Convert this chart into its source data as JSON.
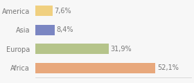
{
  "categories": [
    "Africa",
    "Europa",
    "Asia",
    "America"
  ],
  "values": [
    52.1,
    31.9,
    8.4,
    7.6
  ],
  "bar_colors": [
    "#e8a87c",
    "#b5c48a",
    "#7b86c2",
    "#f0d080"
  ],
  "labels": [
    "52,1%",
    "31,9%",
    "8,4%",
    "7,6%"
  ],
  "background_color": "#f7f7f7",
  "text_color": "#777777",
  "label_fontsize": 7,
  "tick_fontsize": 7,
  "xlim": [
    0,
    68
  ]
}
